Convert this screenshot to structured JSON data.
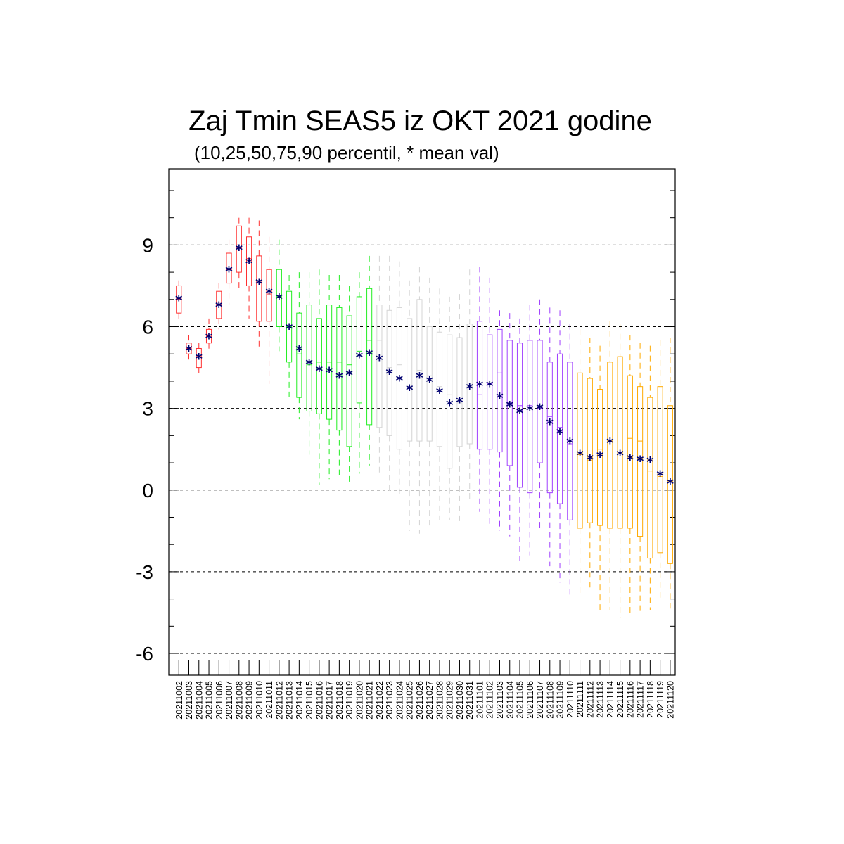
{
  "chart_data": {
    "type": "box",
    "title": "Zaj Tmin SEAS5 iz OKT 2021 godine",
    "subtitle": "(10,25,50,75,90 percentil, * mean val)",
    "ylim": [
      -6.8,
      11.8
    ],
    "yticks": [
      9,
      6,
      3,
      0,
      -3,
      -6
    ],
    "ytick_labels": [
      "9",
      "6",
      "3",
      "0",
      "-3",
      "-6"
    ],
    "grid": "horizontal dashed at major ticks",
    "colors": {
      "red": "#ff3030",
      "green": "#22ee22",
      "gray": "#d4d4d4",
      "purple": "#a040ff",
      "orange": "#ffaa00",
      "mean_marker": "#000070"
    },
    "dates": [
      "20211002",
      "20211003",
      "20211004",
      "20211005",
      "20211006",
      "20211007",
      "20211008",
      "20211009",
      "20211010",
      "20211011",
      "20211012",
      "20211013",
      "20211014",
      "20211015",
      "20211016",
      "20211017",
      "20211018",
      "20211019",
      "20211020",
      "20211021",
      "20211022",
      "20211023",
      "20211024",
      "20211025",
      "20211026",
      "20211027",
      "20211028",
      "20211029",
      "20211030",
      "20211031",
      "20211101",
      "20211102",
      "20211103",
      "20211104",
      "20211105",
      "20211106",
      "20211107",
      "20211108",
      "20211109",
      "20211110",
      "20211111",
      "20211112",
      "20211113",
      "20211114",
      "20211115",
      "20211116",
      "20211117",
      "20211118",
      "20211119",
      "20211120"
    ],
    "color_groups": [
      "red",
      "red",
      "red",
      "red",
      "red",
      "red",
      "red",
      "red",
      "red",
      "red",
      "green",
      "green",
      "green",
      "green",
      "green",
      "green",
      "green",
      "green",
      "green",
      "green",
      "gray",
      "gray",
      "gray",
      "gray",
      "gray",
      "gray",
      "gray",
      "gray",
      "gray",
      "gray",
      "purple",
      "purple",
      "purple",
      "purple",
      "purple",
      "purple",
      "purple",
      "purple",
      "purple",
      "purple",
      "orange",
      "orange",
      "orange",
      "orange",
      "orange",
      "orange",
      "orange",
      "orange",
      "orange",
      "orange"
    ],
    "p10": [
      6.3,
      4.7,
      4.2,
      5.1,
      5.9,
      6.8,
      7.4,
      6.3,
      5.2,
      3.9,
      5.1,
      3.3,
      2.6,
      1.3,
      0.2,
      0.4,
      0.5,
      0.3,
      0.6,
      0.9,
      0.5,
      -0.1,
      -0.3,
      -1.5,
      -1.6,
      -1.3,
      -1.1,
      -1.1,
      -1.2,
      -0.4,
      -0.8,
      -1.3,
      -1.5,
      -1.7,
      -2.6,
      -2.4,
      -1.4,
      -2.8,
      -3.4,
      -3.9,
      -3.9,
      -3.6,
      -4.5,
      -4.4,
      -4.7,
      -4.6,
      -4.5,
      -4.4,
      -4.1,
      -4.4
    ],
    "p25": [
      6.5,
      5.0,
      4.5,
      5.4,
      6.3,
      7.6,
      8.0,
      7.5,
      6.2,
      6.2,
      6.0,
      4.7,
      3.4,
      2.9,
      2.8,
      2.6,
      2.2,
      1.6,
      3.2,
      2.4,
      2.3,
      2.0,
      1.5,
      1.8,
      1.8,
      1.8,
      1.6,
      0.8,
      1.6,
      1.7,
      1.5,
      1.5,
      1.4,
      0.9,
      0.1,
      -0.1,
      1.0,
      -0.1,
      -0.5,
      -1.1,
      -1.4,
      -1.2,
      -1.3,
      -1.4,
      -1.4,
      -1.4,
      -1.7,
      -2.5,
      -2.3,
      -2.7
    ],
    "p50": [
      7.0,
      5.2,
      4.9,
      5.7,
      6.9,
      8.1,
      8.9,
      8.5,
      7.6,
      7.2,
      7.1,
      6.0,
      5.0,
      4.6,
      4.7,
      4.7,
      4.7,
      4.6,
      5.1,
      5.5,
      5.5,
      4.5,
      4.6,
      3.8,
      4.4,
      4.2,
      3.8,
      3.5,
      3.2,
      3.8,
      3.5,
      3.9,
      4.3,
      3.2,
      3.1,
      3.1,
      3.0,
      2.7,
      2.3,
      1.7,
      1.3,
      1.1,
      1.5,
      1.8,
      1.4,
      1.9,
      1.8,
      0.7,
      0.5,
      0.3
    ],
    "p75": [
      7.5,
      5.4,
      5.2,
      5.9,
      7.3,
      8.7,
      9.7,
      9.3,
      8.6,
      8.1,
      8.1,
      7.3,
      6.5,
      6.8,
      6.3,
      6.8,
      6.7,
      6.4,
      7.1,
      7.4,
      6.8,
      6.6,
      6.7,
      6.3,
      7.0,
      6.0,
      5.8,
      5.7,
      5.6,
      6.1,
      6.2,
      5.7,
      5.9,
      5.5,
      5.4,
      5.5,
      5.5,
      4.7,
      5.0,
      4.7,
      4.3,
      4.1,
      3.7,
      4.7,
      4.9,
      4.2,
      3.8,
      3.4,
      3.8,
      3.1
    ],
    "p90": [
      7.7,
      5.7,
      5.4,
      6.3,
      7.6,
      9.2,
      10.0,
      10.0,
      9.9,
      9.3,
      9.2,
      7.9,
      8.0,
      8.0,
      8.1,
      7.9,
      7.9,
      7.5,
      8.0,
      8.6,
      8.6,
      8.6,
      8.4,
      7.7,
      8.2,
      7.8,
      7.4,
      7.1,
      7.2,
      8.1,
      8.2,
      7.8,
      6.6,
      6.5,
      6.3,
      6.8,
      7.0,
      6.7,
      6.6,
      6.1,
      5.9,
      5.6,
      5.3,
      6.2,
      6.1,
      5.7,
      5.4,
      5.3,
      5.5,
      5.6
    ],
    "mean": [
      7.05,
      5.2,
      4.9,
      5.65,
      6.8,
      8.1,
      8.9,
      8.4,
      7.65,
      7.3,
      7.1,
      6.0,
      5.2,
      4.7,
      4.45,
      4.4,
      4.2,
      4.3,
      4.95,
      5.05,
      4.85,
      4.35,
      4.1,
      3.75,
      4.2,
      4.05,
      3.65,
      3.2,
      3.3,
      3.8,
      3.9,
      3.9,
      3.45,
      3.15,
      2.9,
      3.0,
      3.05,
      2.5,
      2.15,
      1.8,
      1.35,
      1.2,
      1.3,
      1.8,
      1.35,
      1.2,
      1.15,
      1.1,
      0.6,
      0.3
    ]
  }
}
